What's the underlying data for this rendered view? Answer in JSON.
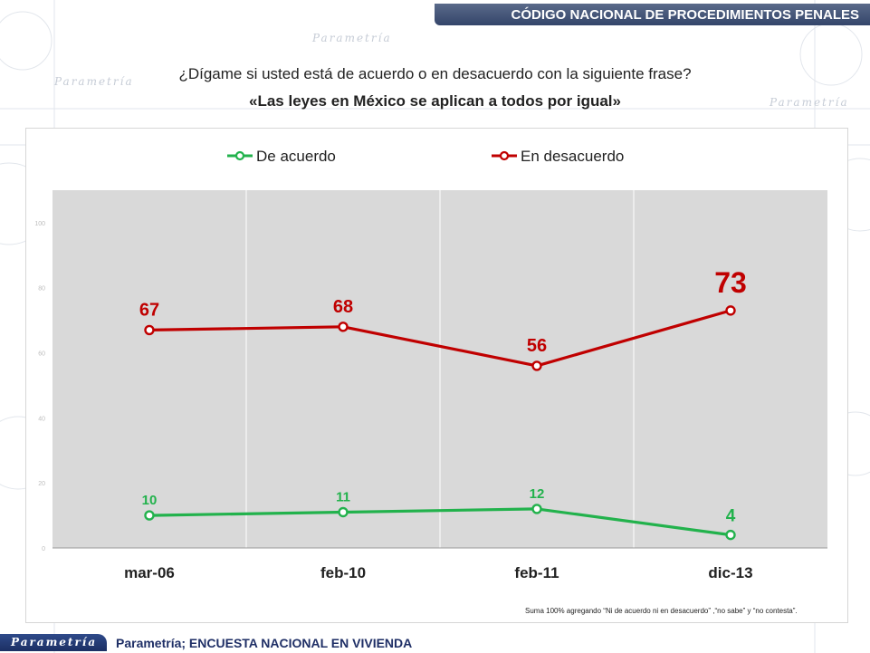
{
  "header": {
    "title": "CÓDIGO NACIONAL DE PROCEDIMIENTOS PENALES",
    "accent": "#3b4a6b"
  },
  "question": "¿Dígame si usted está de acuerdo o en desacuerdo con la siguiente frase?",
  "statement": "«Las leyes en México se aplican a todos por igual»",
  "chart_data": {
    "type": "line",
    "categories": [
      "mar-06",
      "feb-10",
      "feb-11",
      "dic-13"
    ],
    "series": [
      {
        "name": "De acuerdo",
        "values": [
          10,
          11,
          12,
          4
        ],
        "color": "#22b24c",
        "labels": [
          "10",
          "11",
          "12",
          "4"
        ]
      },
      {
        "name": "En desacuerdo",
        "values": [
          67,
          68,
          56,
          73
        ],
        "color": "#c00000",
        "labels": [
          "67",
          "68",
          "56",
          "73"
        ]
      }
    ],
    "yticks": [
      "0",
      "20",
      "40",
      "60",
      "80",
      "100"
    ],
    "ylim": [
      0,
      110
    ],
    "grid": "vertical",
    "legend_position": "top",
    "plot_background": "#d9d9d9"
  },
  "footnote": "Suma 100%  agregando “Ni de acuerdo ni en desacuerdo” ,“no sabe” y “no contesta”.",
  "footer": {
    "logo_text": "Parametría",
    "source": "Parametría; ENCUESTA NACIONAL  EN VIVIENDA",
    "brand_color": "#1f2f66"
  },
  "background_watermark": "Parametría"
}
